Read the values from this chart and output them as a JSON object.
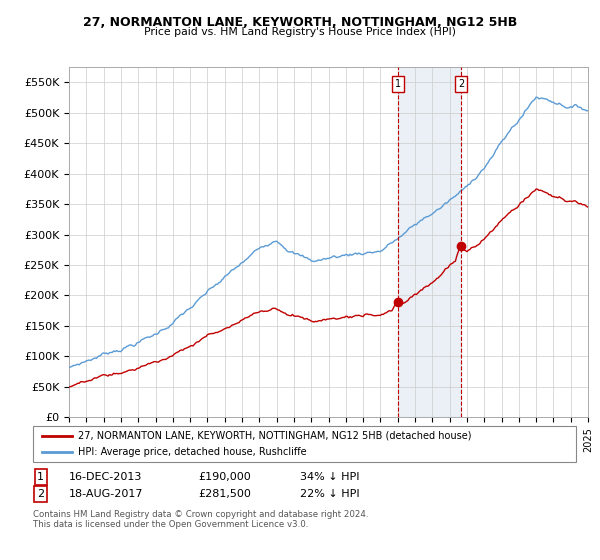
{
  "title_line1": "27, NORMANTON LANE, KEYWORTH, NOTTINGHAM, NG12 5HB",
  "title_line2": "Price paid vs. HM Land Registry's House Price Index (HPI)",
  "ylim": [
    0,
    575000
  ],
  "yticks": [
    0,
    50000,
    100000,
    150000,
    200000,
    250000,
    300000,
    350000,
    400000,
    450000,
    500000,
    550000
  ],
  "ytick_labels": [
    "£0",
    "£50K",
    "£100K",
    "£150K",
    "£200K",
    "£250K",
    "£300K",
    "£350K",
    "£400K",
    "£450K",
    "£500K",
    "£550K"
  ],
  "hpi_color": "#5b9bd5",
  "price_color": "#c00000",
  "idx1": 228,
  "price1": 190000,
  "idx2": 272,
  "price2": 281500,
  "marker1_label": "16-DEC-2013",
  "marker1_text": "£190,000",
  "marker1_pct": "34% ↓ HPI",
  "marker2_label": "18-AUG-2017",
  "marker2_text": "£281,500",
  "marker2_pct": "22% ↓ HPI",
  "legend_line1": "27, NORMANTON LANE, KEYWORTH, NOTTINGHAM, NG12 5HB (detached house)",
  "legend_line2": "HPI: Average price, detached house, Rushcliffe",
  "footnote1": "Contains HM Land Registry data © Crown copyright and database right 2024.",
  "footnote2": "This data is licensed under the Open Government Licence v3.0.",
  "background_color": "#ffffff",
  "plot_bg_color": "#ffffff",
  "grid_color": "#cccccc",
  "shade_color": "#dce6f1"
}
